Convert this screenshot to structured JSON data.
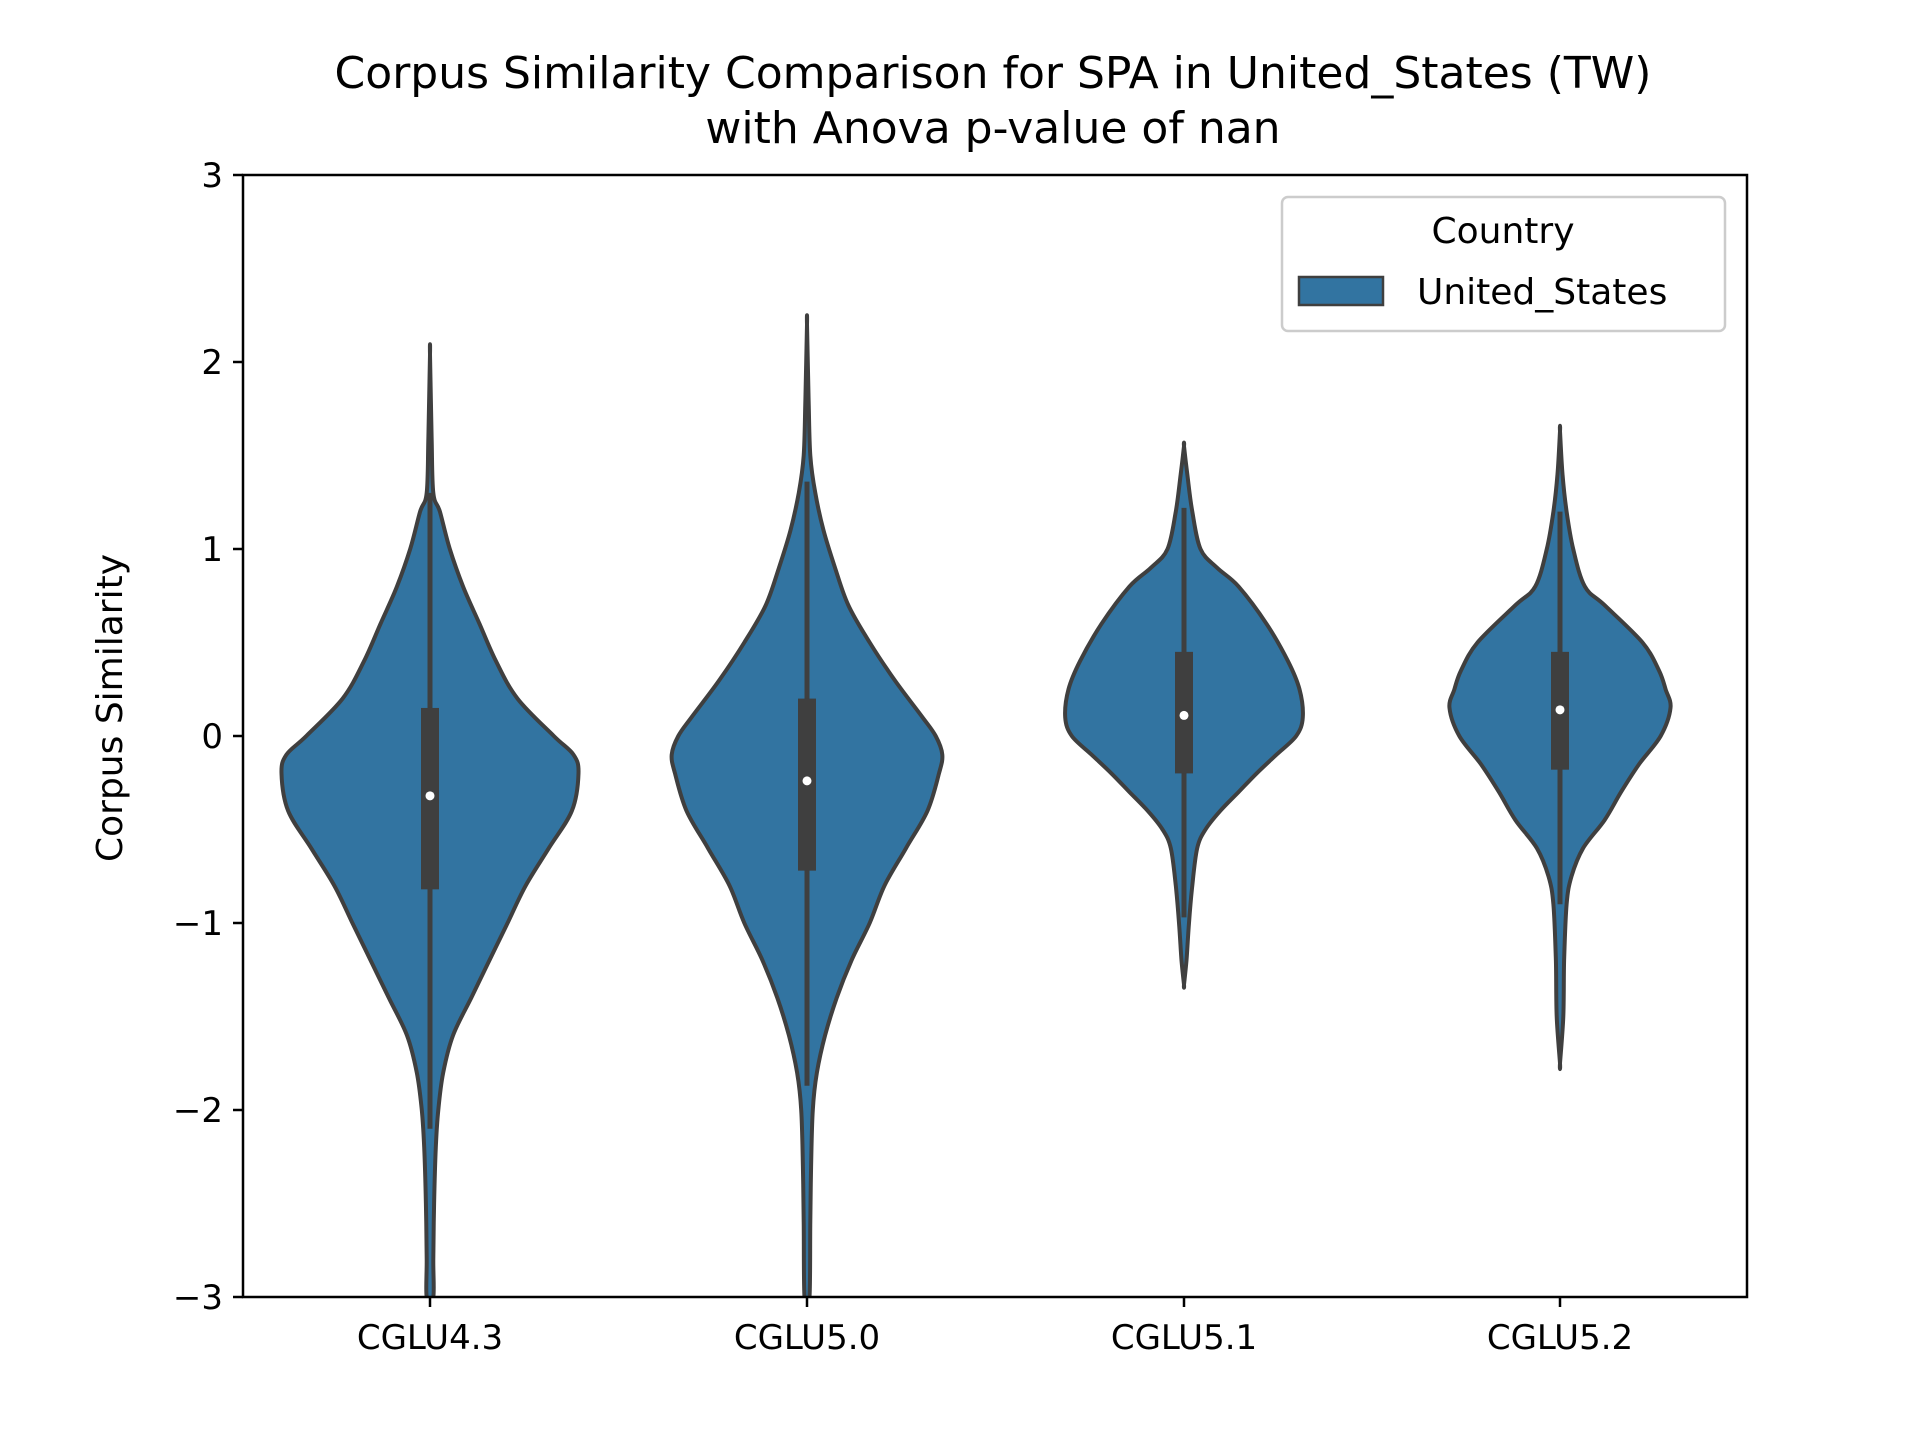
{
  "chart_data": {
    "type": "violin",
    "title": [
      "Corpus Similarity Comparison for SPA in United_States (TW)",
      "with Anova p-value of nan"
    ],
    "xlabel": "",
    "ylabel": "Corpus Similarity",
    "ylim": [
      -3,
      3
    ],
    "yticks": [
      3,
      2,
      1,
      0,
      -1,
      -2,
      -3
    ],
    "ytick_labels": [
      "3",
      "2",
      "1",
      "0",
      "−1",
      "−2",
      "−3"
    ],
    "categories": [
      "CGLU4.3",
      "CGLU5.0",
      "CGLU5.1",
      "CGLU5.2"
    ],
    "grid": false,
    "legend": {
      "title": "Country",
      "position": "top-right",
      "entries": [
        {
          "label": "United_States",
          "color": "#3274a1"
        }
      ]
    },
    "colors": {
      "violin_fill": "#3274a1",
      "violin_edge": "#3f3f3f",
      "box": "#3f3f3f",
      "median_dot": "#ffffff"
    },
    "series": [
      {
        "name": "United_States",
        "violins": [
          {
            "category": "CGLU4.3",
            "median": -0.32,
            "q1": -0.82,
            "q3": 0.15,
            "whisker_low": -2.1,
            "whisker_high": 1.3,
            "profile": [
              [
                2.04,
                0.0
              ],
              [
                1.6,
                0.01
              ],
              [
                1.3,
                0.02
              ],
              [
                1.2,
                0.06
              ],
              [
                1.0,
                0.12
              ],
              [
                0.8,
                0.2
              ],
              [
                0.6,
                0.3
              ],
              [
                0.4,
                0.4
              ],
              [
                0.2,
                0.53
              ],
              [
                0.0,
                0.75
              ],
              [
                -0.1,
                0.87
              ],
              [
                -0.2,
                0.9
              ],
              [
                -0.4,
                0.86
              ],
              [
                -0.6,
                0.72
              ],
              [
                -0.8,
                0.58
              ],
              [
                -1.0,
                0.47
              ],
              [
                -1.2,
                0.36
              ],
              [
                -1.4,
                0.25
              ],
              [
                -1.6,
                0.14
              ],
              [
                -1.8,
                0.08
              ],
              [
                -2.0,
                0.05
              ],
              [
                -2.2,
                0.035
              ],
              [
                -2.5,
                0.025
              ],
              [
                -2.8,
                0.02
              ],
              [
                -3.0,
                0.02
              ]
            ]
          },
          {
            "category": "CGLU5.0",
            "median": -0.24,
            "q1": -0.72,
            "q3": 0.2,
            "whisker_low": -1.87,
            "whisker_high": 1.36,
            "profile": [
              [
                2.2,
                0.0
              ],
              [
                1.8,
                0.01
              ],
              [
                1.5,
                0.02
              ],
              [
                1.3,
                0.05
              ],
              [
                1.1,
                0.1
              ],
              [
                0.9,
                0.17
              ],
              [
                0.7,
                0.25
              ],
              [
                0.5,
                0.38
              ],
              [
                0.3,
                0.53
              ],
              [
                0.1,
                0.7
              ],
              [
                0.0,
                0.78
              ],
              [
                -0.1,
                0.82
              ],
              [
                -0.2,
                0.8
              ],
              [
                -0.4,
                0.73
              ],
              [
                -0.6,
                0.6
              ],
              [
                -0.8,
                0.47
              ],
              [
                -1.0,
                0.38
              ],
              [
                -1.2,
                0.27
              ],
              [
                -1.4,
                0.18
              ],
              [
                -1.6,
                0.11
              ],
              [
                -1.8,
                0.06
              ],
              [
                -2.0,
                0.035
              ],
              [
                -2.3,
                0.025
              ],
              [
                -2.6,
                0.02
              ],
              [
                -3.0,
                0.015
              ]
            ]
          },
          {
            "category": "CGLU5.1",
            "median": 0.11,
            "q1": -0.2,
            "q3": 0.45,
            "whisker_low": -0.97,
            "whisker_high": 1.22,
            "profile": [
              [
                1.55,
                0.0
              ],
              [
                1.4,
                0.02
              ],
              [
                1.2,
                0.05
              ],
              [
                1.0,
                0.1
              ],
              [
                0.9,
                0.2
              ],
              [
                0.8,
                0.33
              ],
              [
                0.6,
                0.5
              ],
              [
                0.4,
                0.63
              ],
              [
                0.25,
                0.7
              ],
              [
                0.1,
                0.72
              ],
              [
                0.0,
                0.68
              ],
              [
                -0.1,
                0.56
              ],
              [
                -0.2,
                0.44
              ],
              [
                -0.3,
                0.33
              ],
              [
                -0.4,
                0.22
              ],
              [
                -0.5,
                0.13
              ],
              [
                -0.6,
                0.08
              ],
              [
                -0.8,
                0.05
              ],
              [
                -1.0,
                0.03
              ],
              [
                -1.2,
                0.015
              ],
              [
                -1.33,
                0.0
              ]
            ]
          },
          {
            "category": "CGLU5.2",
            "median": 0.14,
            "q1": -0.18,
            "q3": 0.45,
            "whisker_low": -0.9,
            "whisker_high": 1.2,
            "profile": [
              [
                1.63,
                0.0
              ],
              [
                1.4,
                0.015
              ],
              [
                1.2,
                0.04
              ],
              [
                1.0,
                0.08
              ],
              [
                0.8,
                0.15
              ],
              [
                0.7,
                0.27
              ],
              [
                0.5,
                0.5
              ],
              [
                0.35,
                0.6
              ],
              [
                0.25,
                0.64
              ],
              [
                0.15,
                0.67
              ],
              [
                0.0,
                0.61
              ],
              [
                -0.15,
                0.48
              ],
              [
                -0.3,
                0.37
              ],
              [
                -0.45,
                0.27
              ],
              [
                -0.6,
                0.14
              ],
              [
                -0.75,
                0.07
              ],
              [
                -0.9,
                0.04
              ],
              [
                -1.2,
                0.025
              ],
              [
                -1.5,
                0.02
              ],
              [
                -1.75,
                0.0
              ]
            ]
          }
        ]
      }
    ]
  }
}
